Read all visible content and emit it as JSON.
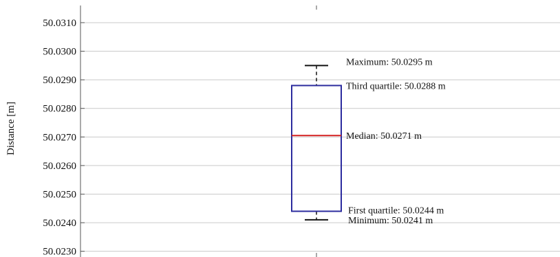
{
  "chart_data": {
    "type": "box",
    "ylabel": "Distance [m]",
    "ylim": [
      50.0228,
      50.0316
    ],
    "grid": true,
    "y_ticks": [
      50.023,
      50.024,
      50.025,
      50.026,
      50.027,
      50.028,
      50.029,
      50.03,
      50.031
    ],
    "y_tick_labels": [
      "50.0230",
      "50.0240",
      "50.0250",
      "50.0260",
      "50.0270",
      "50.0280",
      "50.0290",
      "50.0300",
      "50.0310"
    ],
    "box": {
      "minimum": 50.0241,
      "first_quartile": 50.0244,
      "median": 50.02705,
      "third_quartile": 50.0288,
      "maximum": 50.0295
    },
    "annotations": [
      {
        "key": "maximum",
        "text": "Maximum: 50.0295 m"
      },
      {
        "key": "third_quartile",
        "text": "Third quartile: 50.0288 m"
      },
      {
        "key": "median",
        "text": "Median: 50.0271 m"
      },
      {
        "key": "first_quartile",
        "text": "First quartile: 50.0244 m"
      },
      {
        "key": "minimum",
        "text": "Minimum: 50.0241 m"
      }
    ],
    "colors": {
      "box": "#2b2b9e",
      "median": "#d42020",
      "whisker": "#111111",
      "grid": "#c9c9c9",
      "axis": "#555555"
    }
  }
}
